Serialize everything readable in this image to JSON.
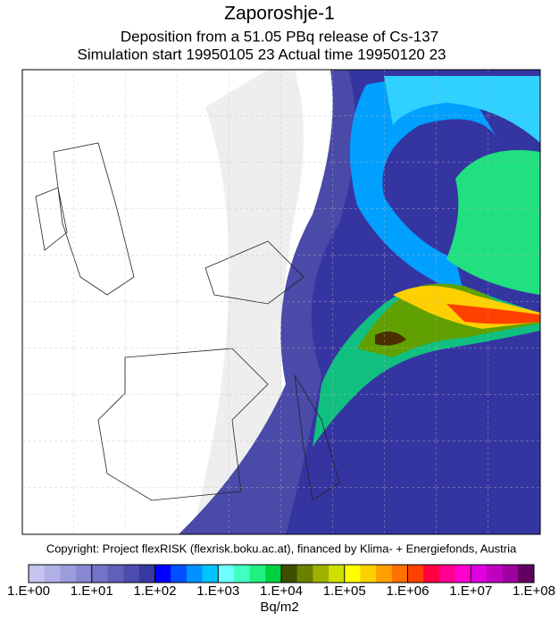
{
  "header": {
    "title": "Zaporoshje-1",
    "line1": "Deposition from a   51.05 PBq release of Cs-137",
    "line2": "Simulation start 19950105 23   Actual time  19950120 23"
  },
  "copyright": "Copyright: Project flexRISK (flexrisk.boku.ac.at), financed by Klima- + Energiefonds, Austria",
  "colorbar": {
    "colors": [
      "#c4c4ee",
      "#b0b0e6",
      "#9c9cdc",
      "#8888d2",
      "#7474c6",
      "#6060ba",
      "#4c4cae",
      "#3838a2",
      "#0000ff",
      "#0050ff",
      "#0090ff",
      "#00c4ff",
      "#70ffff",
      "#40ffc0",
      "#20f080",
      "#00d040",
      "#3c5000",
      "#6c8000",
      "#a0b000",
      "#d0e000",
      "#ffff00",
      "#ffd000",
      "#ffa000",
      "#ff7000",
      "#ff4000",
      "#ff0040",
      "#ff0090",
      "#ff00d0",
      "#e000e0",
      "#c000c0",
      "#a000a0",
      "#600060"
    ],
    "labels": [
      "1.E+00",
      "1.E+01",
      "1.E+02",
      "1.E+03",
      "1.E+04",
      "1.E+05",
      "1.E+06",
      "1.E+07",
      "1.E+08"
    ],
    "unit": "Bq/m2"
  }
}
